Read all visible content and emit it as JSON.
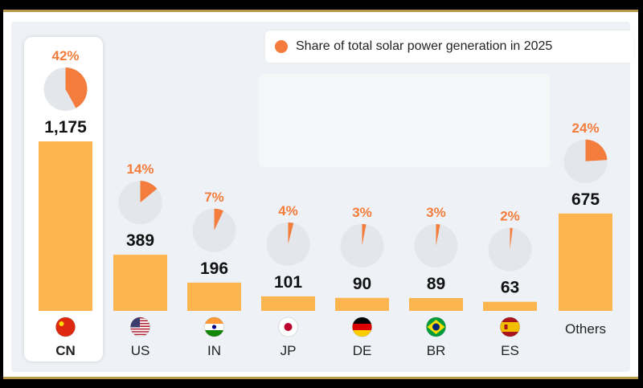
{
  "chart_data": {
    "type": "bar",
    "title": "",
    "legend_label": "Share of total solar power generation in 2025",
    "legend_position": "top-right",
    "categories": [
      "CN",
      "US",
      "IN",
      "JP",
      "DE",
      "BR",
      "ES",
      "Others"
    ],
    "values": [
      1175,
      389,
      196,
      101,
      90,
      89,
      63,
      675
    ],
    "value_labels": [
      "1,175",
      "389",
      "196",
      "101",
      "90",
      "89",
      "63",
      "675"
    ],
    "shares": [
      42,
      14,
      7,
      4,
      3,
      3,
      2,
      24
    ],
    "share_labels": [
      "42%",
      "14%",
      "7%",
      "4%",
      "3%",
      "3%",
      "2%",
      "24%"
    ],
    "flag_icons": [
      "china-flag-icon",
      "usa-flag-icon",
      "india-flag-icon",
      "japan-flag-icon",
      "germany-flag-icon",
      "brazil-flag-icon",
      "spain-flag-icon",
      ""
    ],
    "highlight": "CN",
    "ylim": [
      0,
      1175
    ],
    "grid": false
  },
  "colors": {
    "bar": "#fdb54f",
    "share": "#f47c3c",
    "pie_bg": "#e3e7ec",
    "value_text": "#111111",
    "category_text": "#222222"
  }
}
